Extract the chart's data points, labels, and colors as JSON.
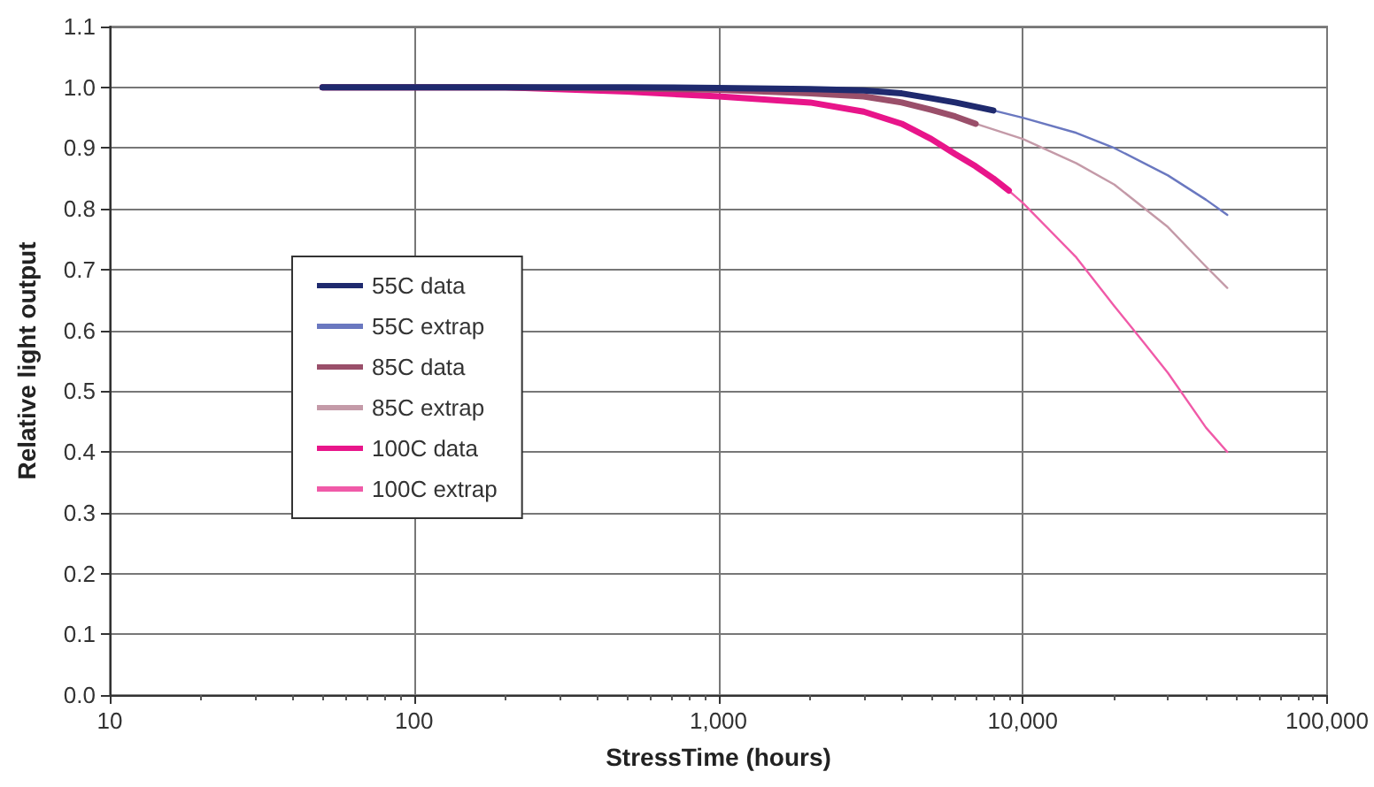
{
  "chart_data": {
    "type": "line",
    "xlabel": "StressTime (hours)",
    "ylabel": "Relative light output",
    "log": "x",
    "xlim": [
      10,
      100000
    ],
    "xticks": [
      10,
      100,
      {
        "value": 1000,
        "label": "1,000"
      },
      {
        "value": 10000,
        "label": "10,000"
      },
      {
        "value": 100000,
        "label": "100,000"
      }
    ],
    "ylim": [
      0,
      1.1
    ],
    "yticks": [
      {
        "value": 0,
        "label": "0.0"
      },
      0.1,
      0.2,
      0.3,
      0.4,
      0.5,
      0.6,
      0.7,
      0.8,
      0.9,
      {
        "value": 1,
        "label": "1.0"
      },
      1.1
    ],
    "grid": true,
    "legend": "left",
    "marker": "none",
    "series": [
      {
        "name": "55C data",
        "color": "#1f2a6e",
        "x": [
          50,
          200,
          500,
          1000,
          2000,
          3000,
          4000,
          5000,
          6000,
          8000
        ],
        "values": [
          1.0,
          1.0,
          1.0,
          0.999,
          0.997,
          0.995,
          0.99,
          0.982,
          0.975,
          0.962
        ]
      },
      {
        "name": "55C extrap",
        "color": "#6a78c0",
        "x": [
          8000,
          10000,
          15000,
          20000,
          30000,
          40000,
          47000
        ],
        "values": [
          0.962,
          0.95,
          0.925,
          0.9,
          0.855,
          0.815,
          0.79
        ]
      },
      {
        "name": "85C data",
        "color": "#9a4f6a",
        "x": [
          50,
          200,
          500,
          1000,
          2000,
          3000,
          4000,
          5000,
          6000,
          7000
        ],
        "values": [
          1.0,
          1.0,
          0.998,
          0.996,
          0.99,
          0.985,
          0.975,
          0.963,
          0.952,
          0.94
        ]
      },
      {
        "name": "85C extrap",
        "color": "#c49aa8",
        "x": [
          7000,
          10000,
          15000,
          20000,
          30000,
          40000,
          47000
        ],
        "values": [
          0.94,
          0.915,
          0.875,
          0.84,
          0.77,
          0.705,
          0.67
        ]
      },
      {
        "name": "100C data",
        "color": "#e8158a",
        "x": [
          50,
          200,
          500,
          1000,
          2000,
          3000,
          4000,
          5000,
          6000,
          7000,
          8000,
          9000
        ],
        "values": [
          1.0,
          1.0,
          0.993,
          0.985,
          0.975,
          0.96,
          0.94,
          0.915,
          0.89,
          0.87,
          0.85,
          0.83
        ]
      },
      {
        "name": "100C extrap",
        "color": "#f05aa8",
        "x": [
          9000,
          10000,
          15000,
          20000,
          25000,
          30000,
          40000,
          47000
        ],
        "values": [
          0.83,
          0.81,
          0.72,
          0.64,
          0.58,
          0.53,
          0.44,
          0.4
        ]
      }
    ]
  }
}
